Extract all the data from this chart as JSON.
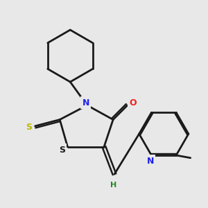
{
  "background_color": "#e8e8e8",
  "line_color": "#1a1a1a",
  "bond_width": 2.0,
  "fig_size": [
    3.0,
    3.0
  ],
  "dpi": 100,
  "atoms": {
    "N": {
      "color": "#2020ee",
      "size": 9
    },
    "O": {
      "color": "#ee2020",
      "size": 9
    },
    "S_thioxo": {
      "color": "#bbbb00",
      "size": 9
    },
    "S_ring": {
      "color": "#1a1a1a",
      "size": 9
    },
    "H": {
      "color": "#228822",
      "size": 8
    }
  }
}
